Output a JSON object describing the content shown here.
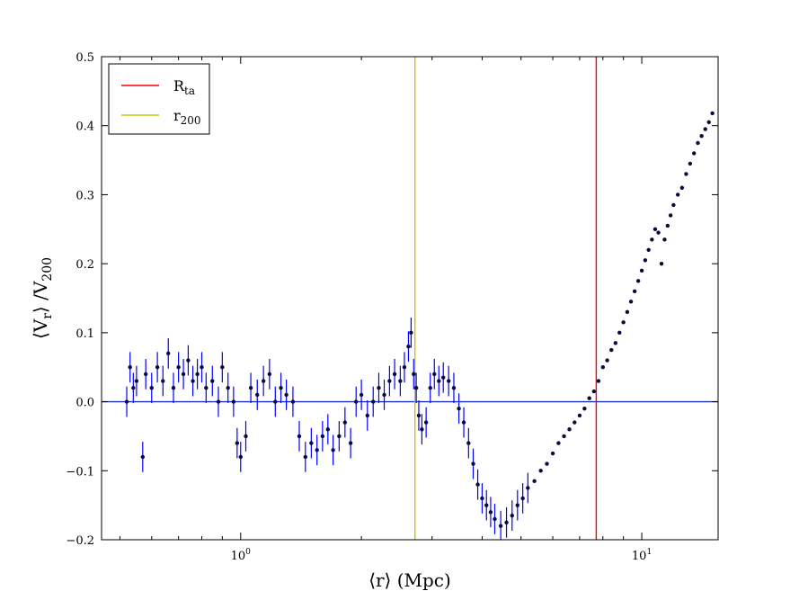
{
  "chart_data": {
    "type": "scatter",
    "xscale": "log",
    "xlim": [
      0.45,
      15.5
    ],
    "ylim": [
      -0.2,
      0.5
    ],
    "xlabel_parts": [
      "⟨r⟩ (Mpc)"
    ],
    "ylabel_parts": [
      "⟨V",
      "r",
      "⟩ /V",
      "200"
    ],
    "x_ticks": [
      {
        "value": 1,
        "base": "10",
        "exp": "0"
      },
      {
        "value": 10,
        "base": "10",
        "exp": "1"
      }
    ],
    "y_ticks": [
      {
        "value": -0.2,
        "label": "−0.2"
      },
      {
        "value": -0.1,
        "label": "−0.1"
      },
      {
        "value": 0.0,
        "label": "0.0"
      },
      {
        "value": 0.1,
        "label": "0.1"
      },
      {
        "value": 0.2,
        "label": "0.2"
      },
      {
        "value": 0.3,
        "label": "0.3"
      },
      {
        "value": 0.4,
        "label": "0.4"
      },
      {
        "value": 0.5,
        "label": "0.5"
      }
    ],
    "grid": false,
    "legend_position": "top-left",
    "reference_lines": [
      {
        "orientation": "horizontal",
        "value": 0.0,
        "color": "#2233cc"
      },
      {
        "orientation": "vertical",
        "value": 2.72,
        "color": "#c8c800",
        "legend_main": "r",
        "legend_sub": "200"
      },
      {
        "orientation": "vertical",
        "value": 7.7,
        "color": "#ff0000",
        "legend_main": "R",
        "legend_sub": "ta"
      }
    ],
    "legend_order": [
      2,
      1
    ],
    "series": [
      {
        "marker_color": "#0a0a3a",
        "errorbar_color": "#0000ff",
        "x": [
          0.52,
          0.53,
          0.54,
          0.55,
          0.57,
          0.58,
          0.6,
          0.62,
          0.64,
          0.66,
          0.68,
          0.7,
          0.72,
          0.74,
          0.76,
          0.78,
          0.8,
          0.82,
          0.85,
          0.88,
          0.9,
          0.93,
          0.96,
          0.98,
          1.0,
          1.03,
          1.06,
          1.1,
          1.14,
          1.18,
          1.22,
          1.26,
          1.3,
          1.35,
          1.4,
          1.45,
          1.5,
          1.55,
          1.6,
          1.65,
          1.7,
          1.76,
          1.82,
          1.88,
          1.94,
          2.0,
          2.07,
          2.14,
          2.21,
          2.28,
          2.35,
          2.42,
          2.5,
          2.56,
          2.62,
          2.66,
          2.7,
          2.74,
          2.78,
          2.83,
          2.9,
          2.97,
          3.04,
          3.12,
          3.2,
          3.3,
          3.4,
          3.5,
          3.6,
          3.7,
          3.8,
          3.9,
          4.0,
          4.1,
          4.2,
          4.3,
          4.45,
          4.6,
          4.75,
          4.9,
          5.05,
          5.2,
          5.4,
          5.6,
          5.8,
          6.0,
          6.2,
          6.4,
          6.6,
          6.8,
          7.0,
          7.2,
          7.4,
          7.6,
          7.8,
          8.0,
          8.2,
          8.4,
          8.6,
          8.8,
          9.0,
          9.2,
          9.4,
          9.6,
          9.8,
          10.0,
          10.2,
          10.4,
          10.6,
          10.8,
          11.0,
          11.2,
          11.4,
          11.6,
          11.8,
          12.0,
          12.3,
          12.6,
          12.9,
          13.2,
          13.5,
          13.8,
          14.1,
          14.4,
          14.7,
          15.0
        ],
        "y": [
          0.0,
          0.05,
          0.02,
          0.03,
          -0.08,
          0.04,
          0.02,
          0.05,
          0.03,
          0.07,
          0.02,
          0.05,
          0.04,
          0.06,
          0.03,
          0.04,
          0.05,
          0.02,
          0.03,
          0.0,
          0.05,
          0.02,
          0.0,
          -0.06,
          -0.08,
          -0.05,
          0.02,
          0.01,
          0.03,
          0.04,
          0.0,
          0.02,
          0.01,
          0.0,
          -0.05,
          -0.08,
          -0.06,
          -0.07,
          -0.05,
          -0.04,
          -0.07,
          -0.05,
          -0.03,
          -0.06,
          0.0,
          0.01,
          -0.02,
          0.0,
          0.02,
          0.01,
          0.03,
          0.04,
          0.03,
          0.05,
          0.08,
          0.1,
          0.04,
          0.02,
          -0.02,
          -0.04,
          -0.03,
          0.02,
          0.04,
          0.03,
          0.035,
          0.03,
          0.02,
          -0.01,
          -0.03,
          -0.06,
          -0.09,
          -0.12,
          -0.14,
          -0.15,
          -0.16,
          -0.17,
          -0.18,
          -0.175,
          -0.165,
          -0.15,
          -0.14,
          -0.125,
          -0.115,
          -0.1,
          -0.09,
          -0.075,
          -0.06,
          -0.05,
          -0.04,
          -0.03,
          -0.02,
          -0.01,
          0.005,
          0.015,
          0.03,
          0.05,
          0.06,
          0.075,
          0.085,
          0.1,
          0.115,
          0.13,
          0.145,
          0.16,
          0.175,
          0.19,
          0.205,
          0.22,
          0.235,
          0.25,
          0.245,
          0.2,
          0.235,
          0.255,
          0.27,
          0.285,
          0.3,
          0.31,
          0.33,
          0.345,
          0.36,
          0.375,
          0.385,
          0.395,
          0.405,
          0.418
        ]
      }
    ]
  }
}
